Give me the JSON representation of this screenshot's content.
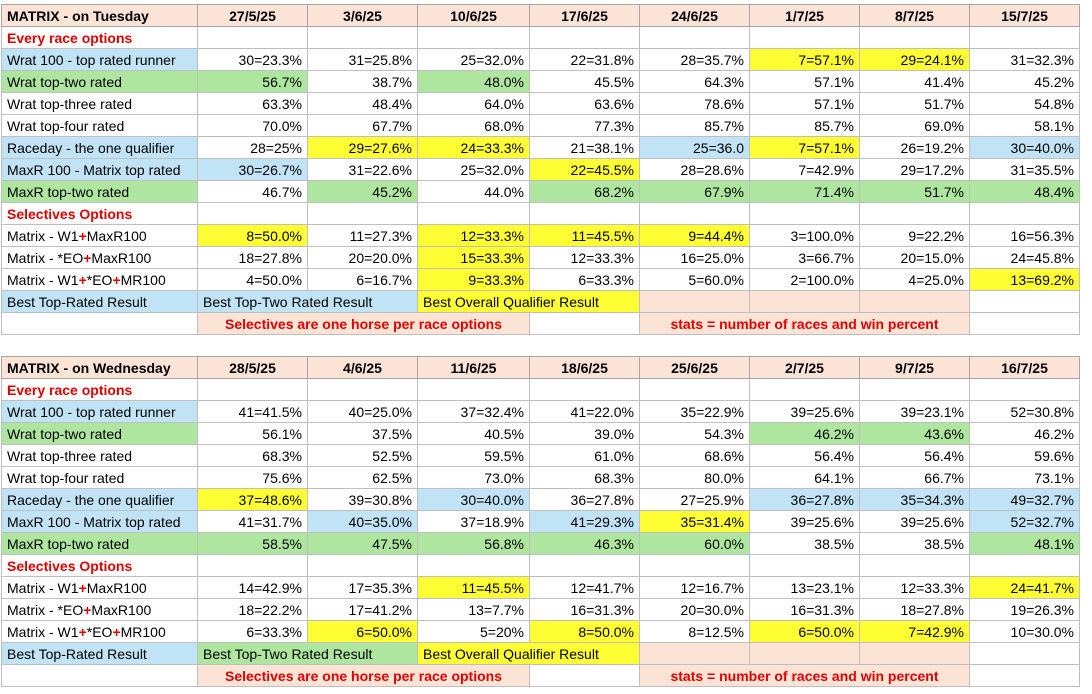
{
  "colors": {
    "blue": "#c0e4f5",
    "green": "#aee6a0",
    "yellow": "#ffff33",
    "pink": "#fbe3d6",
    "red_text": "#e00000"
  },
  "tables": [
    {
      "title": "MATRIX - on Tuesday",
      "dates": [
        "27/5/25",
        "3/6/25",
        "10/6/25",
        "17/6/25",
        "24/6/25",
        "1/7/25",
        "8/7/25",
        "15/7/25"
      ],
      "rows": [
        {
          "type": "section",
          "label": "Every race options"
        },
        {
          "type": "data",
          "label": "Wrat 100 - top rated runner",
          "label_color": "blue",
          "cells": [
            [
              "30=23.3%",
              ""
            ],
            [
              "31=25.8%",
              ""
            ],
            [
              "25=32.0%",
              ""
            ],
            [
              "22=31.8%",
              ""
            ],
            [
              "28=35.7%",
              ""
            ],
            [
              "7=57.1%",
              "yellow"
            ],
            [
              "29=24.1%",
              "yellow"
            ],
            [
              "31=32.3%",
              ""
            ]
          ]
        },
        {
          "type": "data",
          "label": "Wrat top-two rated",
          "label_color": "green",
          "cells": [
            [
              "56.7%",
              "green"
            ],
            [
              "38.7%",
              ""
            ],
            [
              "48.0%",
              "green"
            ],
            [
              "45.5%",
              ""
            ],
            [
              "64.3%",
              ""
            ],
            [
              "57.1%",
              ""
            ],
            [
              "41.4%",
              ""
            ],
            [
              "45.2%",
              ""
            ]
          ]
        },
        {
          "type": "data",
          "label": "Wrat top-three rated",
          "label_color": "",
          "cells": [
            [
              "63.3%",
              ""
            ],
            [
              "48.4%",
              ""
            ],
            [
              "64.0%",
              ""
            ],
            [
              "63.6%",
              ""
            ],
            [
              "78.6%",
              ""
            ],
            [
              "57.1%",
              ""
            ],
            [
              "51.7%",
              ""
            ],
            [
              "54.8%",
              ""
            ]
          ]
        },
        {
          "type": "data",
          "label": "Wrat top-four rated",
          "label_color": "",
          "cells": [
            [
              "70.0%",
              ""
            ],
            [
              "67.7%",
              ""
            ],
            [
              "68.0%",
              ""
            ],
            [
              "77.3%",
              ""
            ],
            [
              "85.7%",
              ""
            ],
            [
              "85.7%",
              ""
            ],
            [
              "69.0%",
              ""
            ],
            [
              "58.1%",
              ""
            ]
          ]
        },
        {
          "type": "data",
          "label": "Raceday - the one qualifier",
          "label_color": "blue",
          "cells": [
            [
              "28=25%",
              ""
            ],
            [
              "29=27.6%",
              "yellow"
            ],
            [
              "24=33.3%",
              "yellow"
            ],
            [
              "21=38.1%",
              ""
            ],
            [
              "25=36.0",
              "blue"
            ],
            [
              "7=57.1%",
              "yellow"
            ],
            [
              "26=19.2%",
              ""
            ],
            [
              "30=40.0%",
              "blue"
            ]
          ]
        },
        {
          "type": "data",
          "label": "MaxR 100 - Matrix top rated",
          "label_color": "blue",
          "cells": [
            [
              "30=26.7%",
              "blue"
            ],
            [
              "31=22.6%",
              ""
            ],
            [
              "25=32.0%",
              ""
            ],
            [
              "22=45.5%",
              "yellow"
            ],
            [
              "28=28.6%",
              ""
            ],
            [
              "7=42.9%",
              ""
            ],
            [
              "29=17.2%",
              ""
            ],
            [
              "31=35.5%",
              ""
            ]
          ]
        },
        {
          "type": "data",
          "label": "MaxR top-two rated",
          "label_color": "green",
          "cells": [
            [
              "46.7%",
              ""
            ],
            [
              "45.2%",
              "green"
            ],
            [
              "44.0%",
              ""
            ],
            [
              "68.2%",
              "green"
            ],
            [
              "67.9%",
              "green"
            ],
            [
              "71.4%",
              "green"
            ],
            [
              "51.7%",
              "green"
            ],
            [
              "48.4%",
              "green"
            ]
          ]
        },
        {
          "type": "section",
          "label": "Selectives Options"
        },
        {
          "type": "data",
          "label_parts": [
            "Matrix - W1",
            "+",
            "MaxR100"
          ],
          "label_color": "",
          "cells": [
            [
              "8=50.0%",
              "yellow"
            ],
            [
              "11=27.3%",
              ""
            ],
            [
              "12=33.3%",
              "yellow"
            ],
            [
              "11=45.5%",
              "yellow"
            ],
            [
              "9=44.4%",
              "yellow"
            ],
            [
              "3=100.0%",
              ""
            ],
            [
              "9=22.2%",
              ""
            ],
            [
              "16=56.3%",
              ""
            ]
          ]
        },
        {
          "type": "data",
          "label_parts": [
            "Matrix - *EO",
            "+",
            "MaxR100"
          ],
          "label_color": "",
          "cells": [
            [
              "18=27.8%",
              ""
            ],
            [
              "20=20.0%",
              ""
            ],
            [
              "15=33.3%",
              "yellow"
            ],
            [
              "12=33.3%",
              ""
            ],
            [
              "16=25.0%",
              ""
            ],
            [
              "3=66.7%",
              ""
            ],
            [
              "20=15.0%",
              ""
            ],
            [
              "24=45.8%",
              ""
            ]
          ]
        },
        {
          "type": "data",
          "label_parts": [
            "Matrix - W1",
            "+",
            "*EO",
            "+",
            "MR100"
          ],
          "label_color": "",
          "cells": [
            [
              "4=50.0%",
              ""
            ],
            [
              "6=16.7%",
              ""
            ],
            [
              "9=33.3%",
              "yellow"
            ],
            [
              "6=33.3%",
              ""
            ],
            [
              "5=60.0%",
              ""
            ],
            [
              "2=100.0%",
              ""
            ],
            [
              "4=25.0%",
              ""
            ],
            [
              "13=69.2%",
              "yellow"
            ]
          ]
        }
      ],
      "legend": {
        "top_rated": "Best Top-Rated Result",
        "top_two": "Best Top-Two Rated Result",
        "top_two_color": "blue",
        "overall": "Best Overall Qualifier Result"
      },
      "notes": {
        "selectives": "Selectives are one horse per race options",
        "stats": "stats = number of races and win percent"
      }
    },
    {
      "title": "MATRIX - on Wednesday",
      "dates": [
        "28/5/25",
        "4/6/25",
        "11/6/25",
        "18/6/25",
        "25/6/25",
        "2/7/25",
        "9/7/25",
        "16/7/25"
      ],
      "rows": [
        {
          "type": "section",
          "label": "Every race options"
        },
        {
          "type": "data",
          "label": "Wrat 100 - top rated runner",
          "label_color": "blue",
          "cells": [
            [
              "41=41.5%",
              ""
            ],
            [
              "40=25.0%",
              ""
            ],
            [
              "37=32.4%",
              ""
            ],
            [
              "41=22.0%",
              ""
            ],
            [
              "35=22.9%",
              ""
            ],
            [
              "39=25.6%",
              ""
            ],
            [
              "39=23.1%",
              ""
            ],
            [
              "52=30.8%",
              ""
            ]
          ]
        },
        {
          "type": "data",
          "label": "Wrat top-two rated",
          "label_color": "green",
          "cells": [
            [
              "56.1%",
              ""
            ],
            [
              "37.5%",
              ""
            ],
            [
              "40.5%",
              ""
            ],
            [
              "39.0%",
              ""
            ],
            [
              "54.3%",
              ""
            ],
            [
              "46.2%",
              "green"
            ],
            [
              "43.6%",
              "green"
            ],
            [
              "46.2%",
              ""
            ]
          ]
        },
        {
          "type": "data",
          "label": "Wrat top-three rated",
          "label_color": "",
          "cells": [
            [
              "68.3%",
              ""
            ],
            [
              "52.5%",
              ""
            ],
            [
              "59.5%",
              ""
            ],
            [
              "61.0%",
              ""
            ],
            [
              "68.6%",
              ""
            ],
            [
              "56.4%",
              ""
            ],
            [
              "56.4%",
              ""
            ],
            [
              "59.6%",
              ""
            ]
          ]
        },
        {
          "type": "data",
          "label": "Wrat top-four rated",
          "label_color": "",
          "cells": [
            [
              "75.6%",
              ""
            ],
            [
              "62.5%",
              ""
            ],
            [
              "73.0%",
              ""
            ],
            [
              "68.3%",
              ""
            ],
            [
              "80.0%",
              ""
            ],
            [
              "64.1%",
              ""
            ],
            [
              "66.7%",
              ""
            ],
            [
              "73.1%",
              ""
            ]
          ]
        },
        {
          "type": "data",
          "label": "Raceday - the one qualifier",
          "label_color": "blue",
          "cells": [
            [
              "37=48.6%",
              "yellow"
            ],
            [
              "39=30.8%",
              ""
            ],
            [
              "30=40.0%",
              "blue"
            ],
            [
              "36=27.8%",
              ""
            ],
            [
              "27=25.9%",
              ""
            ],
            [
              "36=27.8%",
              "blue"
            ],
            [
              "35=34.3%",
              "blue"
            ],
            [
              "49=32.7%",
              "blue"
            ]
          ]
        },
        {
          "type": "data",
          "label": "MaxR 100 - Matrix top rated",
          "label_color": "blue",
          "cells": [
            [
              "41=31.7%",
              ""
            ],
            [
              "40=35.0%",
              "blue"
            ],
            [
              "37=18.9%",
              ""
            ],
            [
              "41=29.3%",
              "blue"
            ],
            [
              "35=31.4%",
              "yellow"
            ],
            [
              "39=25.6%",
              ""
            ],
            [
              "39=25.6%",
              ""
            ],
            [
              "52=32.7%",
              "blue"
            ]
          ]
        },
        {
          "type": "data",
          "label": "MaxR top-two rated",
          "label_color": "green",
          "cells": [
            [
              "58.5%",
              "green"
            ],
            [
              "47.5%",
              "green"
            ],
            [
              "56.8%",
              "green"
            ],
            [
              "46.3%",
              "green"
            ],
            [
              "60.0%",
              "green"
            ],
            [
              "38.5%",
              ""
            ],
            [
              "38.5%",
              ""
            ],
            [
              "48.1%",
              "green"
            ]
          ]
        },
        {
          "type": "section",
          "label": "Selectives Options"
        },
        {
          "type": "data",
          "label_parts": [
            "Matrix - W1",
            "+",
            "MaxR100"
          ],
          "label_color": "",
          "cells": [
            [
              "14=42.9%",
              ""
            ],
            [
              "17=35.3%",
              ""
            ],
            [
              "11=45.5%",
              "yellow"
            ],
            [
              "12=41.7%",
              ""
            ],
            [
              "12=16.7%",
              ""
            ],
            [
              "13=23.1%",
              ""
            ],
            [
              "12=33.3%",
              ""
            ],
            [
              "24=41.7%",
              "yellow"
            ]
          ]
        },
        {
          "type": "data",
          "label_parts": [
            "Matrix - *EO",
            "+",
            "MaxR100"
          ],
          "label_color": "",
          "cells": [
            [
              "18=22.2%",
              ""
            ],
            [
              "17=41.2%",
              ""
            ],
            [
              "13=7.7%",
              ""
            ],
            [
              "16=31.3%",
              ""
            ],
            [
              "20=30.0%",
              ""
            ],
            [
              "16=31.3%",
              ""
            ],
            [
              "18=27.8%",
              ""
            ],
            [
              "19=26.3%",
              ""
            ]
          ]
        },
        {
          "type": "data",
          "label_parts": [
            "Matrix - W1",
            "+",
            "*EO",
            "+",
            "MR100"
          ],
          "label_color": "",
          "cells": [
            [
              "6=33.3%",
              ""
            ],
            [
              "6=50.0%",
              "yellow"
            ],
            [
              "5=20%",
              ""
            ],
            [
              "8=50.0%",
              "yellow"
            ],
            [
              "8=12.5%",
              ""
            ],
            [
              "6=50.0%",
              "yellow"
            ],
            [
              "7=42.9%",
              "yellow"
            ],
            [
              "10=30.0%",
              ""
            ]
          ]
        }
      ],
      "legend": {
        "top_rated": "Best Top-Rated Result",
        "top_two": "Best Top-Two Rated Result",
        "top_two_color": "green",
        "overall": "Best Overall Qualifier Result"
      },
      "notes": {
        "selectives": "Selectives are one horse per race options",
        "stats": "stats = number of races and win percent"
      }
    }
  ]
}
